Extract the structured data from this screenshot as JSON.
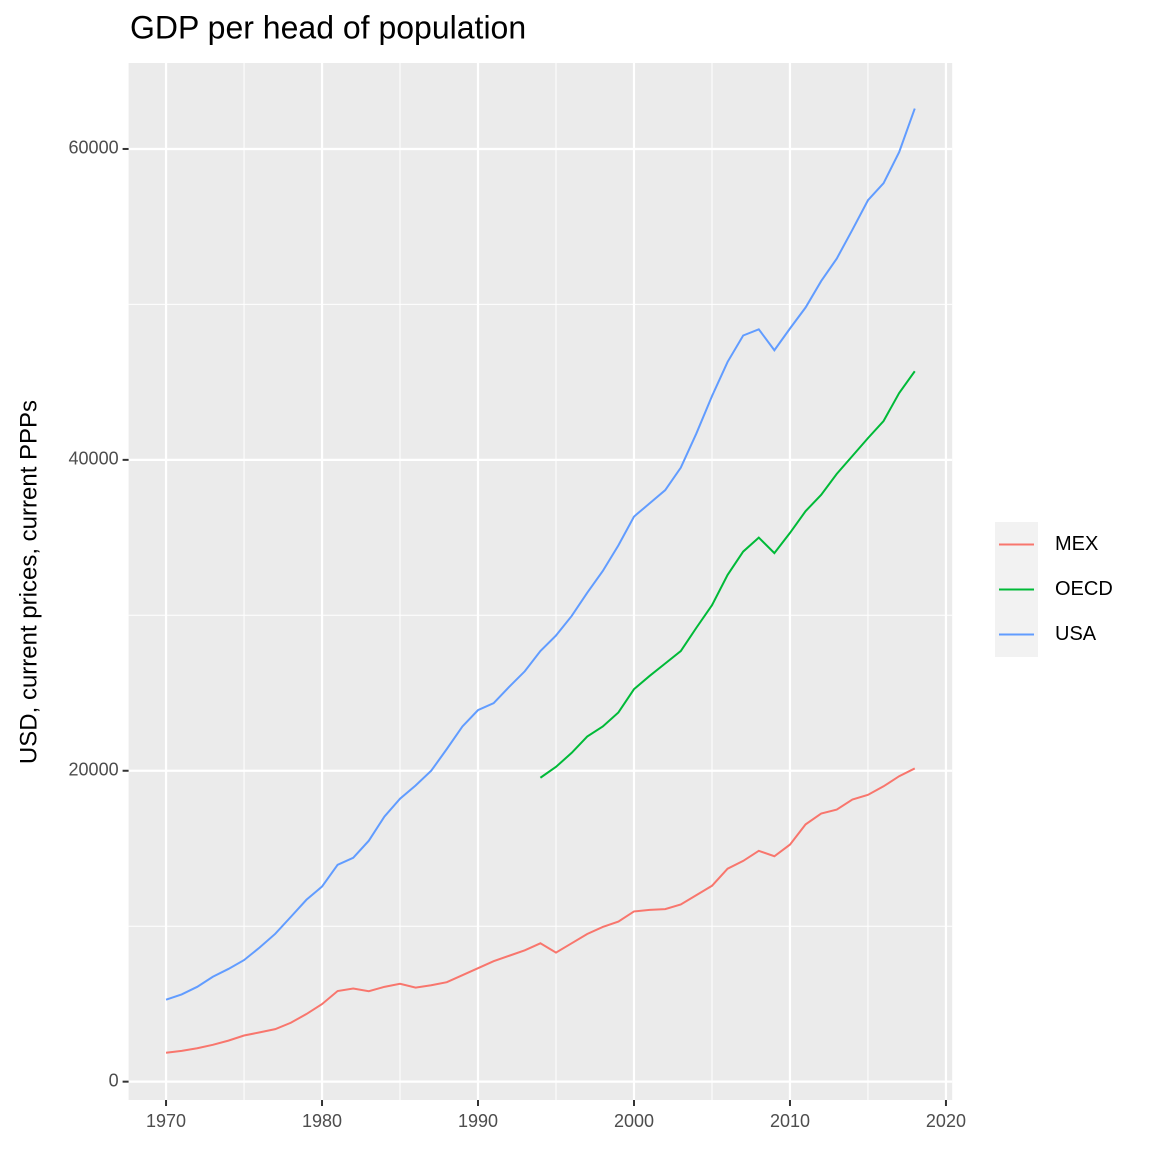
{
  "chart_data": {
    "type": "line",
    "title": "GDP per head of population",
    "y_label": "USD, current prices, current PPPs",
    "x": [
      1970,
      1971,
      1972,
      1973,
      1974,
      1975,
      1976,
      1977,
      1978,
      1979,
      1980,
      1981,
      1982,
      1983,
      1984,
      1985,
      1986,
      1987,
      1988,
      1989,
      1990,
      1991,
      1992,
      1993,
      1994,
      1995,
      1996,
      1997,
      1998,
      1999,
      2000,
      2001,
      2002,
      2003,
      2004,
      2005,
      2006,
      2007,
      2008,
      2009,
      2010,
      2011,
      2012,
      2013,
      2014,
      2015,
      2016,
      2017,
      2018
    ],
    "series": [
      {
        "name": "MEX",
        "color": "#f8766d",
        "values": [
          1860,
          1980,
          2150,
          2370,
          2640,
          2970,
          3170,
          3380,
          3790,
          4350,
          4990,
          5830,
          5990,
          5820,
          6100,
          6300,
          6050,
          6200,
          6400,
          6850,
          7300,
          7750,
          8100,
          8450,
          8900,
          8300,
          8900,
          9500,
          9950,
          10300,
          10950,
          11050,
          11100,
          11400,
          12000,
          12600,
          13700,
          14200,
          14850,
          14500,
          15250,
          16550,
          17250,
          17500,
          18150,
          18450,
          19000,
          19650,
          20150
        ]
      },
      {
        "name": "OECD",
        "color": "#00ba38",
        "values": [
          null,
          null,
          null,
          null,
          null,
          null,
          null,
          null,
          null,
          null,
          null,
          null,
          null,
          null,
          null,
          null,
          null,
          null,
          null,
          null,
          null,
          null,
          null,
          null,
          19550,
          20250,
          21150,
          22200,
          22850,
          23750,
          25250,
          26100,
          26900,
          27700,
          29200,
          30650,
          32600,
          34100,
          35000,
          34000,
          35300,
          36700,
          37750,
          39100,
          40250,
          41400,
          42500,
          44300,
          45700
        ]
      },
      {
        "name": "USA",
        "color": "#619cff",
        "values": [
          5270,
          5610,
          6100,
          6750,
          7250,
          7820,
          8630,
          9510,
          10600,
          11700,
          12550,
          13950,
          14400,
          15500,
          17050,
          18200,
          19050,
          20000,
          21400,
          22850,
          23900,
          24350,
          25400,
          26400,
          27700,
          28700,
          29950,
          31450,
          32850,
          34500,
          36350,
          37200,
          38050,
          39500,
          41700,
          44100,
          46300,
          48000,
          48400,
          47050,
          48450,
          49800,
          51500,
          52950,
          54800,
          56700,
          57800,
          59800,
          62600
        ]
      }
    ],
    "xlim": [
      1967.6,
      2020.4
    ],
    "xticks": [
      1970,
      1980,
      1990,
      2000,
      2010,
      2020
    ],
    "ylim": [
      -1180,
      65530
    ],
    "yticks": [
      0,
      20000,
      40000,
      60000
    ],
    "grid": true,
    "legend_position": "right"
  }
}
